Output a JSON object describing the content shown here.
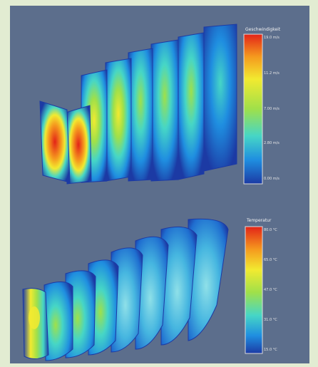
{
  "top_legend": {
    "title": "Geschwindigkeit",
    "ticks": [
      "19.0 m/s",
      "11.2 m/s",
      "7.00 m/s",
      "2.80 m/s",
      "0.00 m/s"
    ]
  },
  "bottom_legend": {
    "title": "Temperatur",
    "ticks": [
      "80.0 °C",
      "65.0 °C",
      "47.0 °C",
      "31.0 °C",
      "15.0 °C"
    ]
  },
  "colors": {
    "background": "#5c6e8c",
    "page": "#e2ecd2",
    "scale": [
      "#1c3aa4",
      "#1f8ee0",
      "#46d6c6",
      "#9fe04a",
      "#f2ea30",
      "#f59a1e",
      "#e32318"
    ]
  },
  "icons": {
    "flow_visualization": "flow-slices-image"
  }
}
